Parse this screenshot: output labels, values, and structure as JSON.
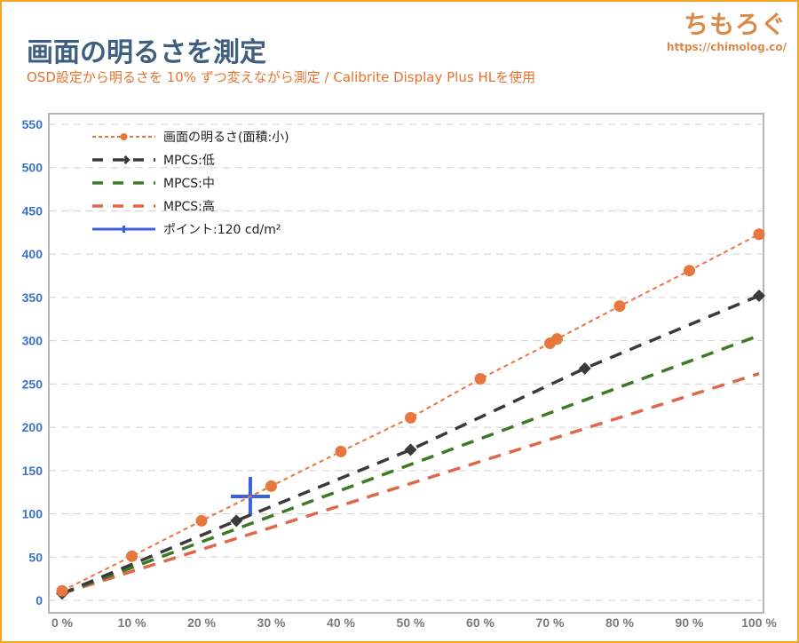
{
  "header": {
    "title": "画面の明るさを測定",
    "subtitle": "OSD設定から明るさを 10% ずつ変えながら測定 / Calibrite Display Plus HLを使用"
  },
  "logo": {
    "text": "ちもろぐ",
    "url": "https://chimolog.co/"
  },
  "chart_data": {
    "type": "line",
    "title": "画面の明るさを測定",
    "xlabel": "",
    "ylabel": "",
    "xlim": [
      0,
      100
    ],
    "ylim": [
      0,
      550
    ],
    "yticks": [
      0,
      50,
      100,
      150,
      200,
      250,
      300,
      350,
      400,
      450,
      500,
      550
    ],
    "xticks": [
      0,
      10,
      20,
      30,
      40,
      50,
      60,
      70,
      80,
      90,
      100
    ],
    "xtick_labels": [
      "0 %",
      "10 %",
      "20 %",
      "30 %",
      "40 %",
      "50 %",
      "60 %",
      "70 %",
      "80 %",
      "90 %",
      "100 %"
    ],
    "grid": true,
    "legend_position": "top-left",
    "series": [
      {
        "name": "画面の明るさ(面積:小)",
        "color": "#e8763f",
        "style": "dotted-marker-circle",
        "x": [
          0,
          10,
          20,
          30,
          40,
          50,
          60,
          70,
          71,
          80,
          90,
          100
        ],
        "y": [
          11,
          51,
          92,
          132,
          172,
          211,
          256,
          297,
          302,
          340,
          381,
          423
        ]
      },
      {
        "name": "MPCS:低",
        "color": "#3a3a3a",
        "style": "dashed-marker-diamond",
        "x": [
          0,
          25,
          50,
          75,
          100
        ],
        "y": [
          8,
          92,
          174,
          268,
          352
        ]
      },
      {
        "name": "MPCS:中",
        "color": "#3c7a25",
        "style": "dashed",
        "x": [
          0,
          100
        ],
        "y": [
          8,
          306
        ]
      },
      {
        "name": "MPCS:高",
        "color": "#e0684a",
        "style": "dashed",
        "x": [
          0,
          100
        ],
        "y": [
          8,
          262
        ]
      },
      {
        "name": "ポイント:120 cd/m²",
        "color": "#3a62e0",
        "style": "cross",
        "x": [
          27
        ],
        "y": [
          120
        ]
      }
    ]
  }
}
